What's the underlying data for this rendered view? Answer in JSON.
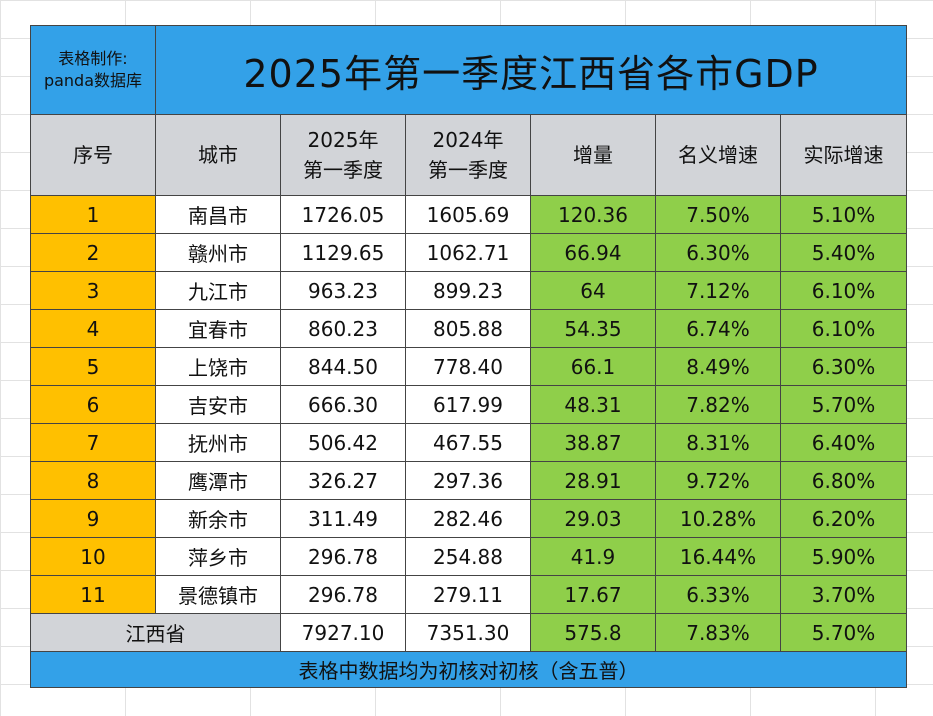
{
  "credit": {
    "line1": "表格制作:",
    "line2": "panda数据库"
  },
  "title": "2025年第一季度江西省各市GDP",
  "headers": {
    "index": "序号",
    "city": "城市",
    "q2025_line1": "2025年",
    "q2025_line2": "第一季度",
    "q2024_line1": "2024年",
    "q2024_line2": "第一季度",
    "increase": "增量",
    "nominal": "名义增速",
    "real": "实际增速"
  },
  "rows": [
    {
      "index": "1",
      "city": "南昌市",
      "q2025": "1726.05",
      "q2024": "1605.69",
      "increase": "120.36",
      "nominal": "7.50%",
      "real": "5.10%"
    },
    {
      "index": "2",
      "city": "赣州市",
      "q2025": "1129.65",
      "q2024": "1062.71",
      "increase": "66.94",
      "nominal": "6.30%",
      "real": "5.40%"
    },
    {
      "index": "3",
      "city": "九江市",
      "q2025": "963.23",
      "q2024": "899.23",
      "increase": "64",
      "nominal": "7.12%",
      "real": "6.10%"
    },
    {
      "index": "4",
      "city": "宜春市",
      "q2025": "860.23",
      "q2024": "805.88",
      "increase": "54.35",
      "nominal": "6.74%",
      "real": "6.10%"
    },
    {
      "index": "5",
      "city": "上饶市",
      "q2025": "844.50",
      "q2024": "778.40",
      "increase": "66.1",
      "nominal": "8.49%",
      "real": "6.30%"
    },
    {
      "index": "6",
      "city": "吉安市",
      "q2025": "666.30",
      "q2024": "617.99",
      "increase": "48.31",
      "nominal": "7.82%",
      "real": "5.70%"
    },
    {
      "index": "7",
      "city": "抚州市",
      "q2025": "506.42",
      "q2024": "467.55",
      "increase": "38.87",
      "nominal": "8.31%",
      "real": "6.40%"
    },
    {
      "index": "8",
      "city": "鹰潭市",
      "q2025": "326.27",
      "q2024": "297.36",
      "increase": "28.91",
      "nominal": "9.72%",
      "real": "6.80%"
    },
    {
      "index": "9",
      "city": "新余市",
      "q2025": "311.49",
      "q2024": "282.46",
      "increase": "29.03",
      "nominal": "10.28%",
      "real": "6.20%"
    },
    {
      "index": "10",
      "city": "萍乡市",
      "q2025": "296.78",
      "q2024": "254.88",
      "increase": "41.9",
      "nominal": "16.44%",
      "real": "5.90%"
    },
    {
      "index": "11",
      "city": "景德镇市",
      "q2025": "296.78",
      "q2024": "279.11",
      "increase": "17.67",
      "nominal": "6.33%",
      "real": "3.70%"
    }
  ],
  "total": {
    "label": "江西省",
    "q2025": "7927.10",
    "q2024": "7351.30",
    "increase": "575.8",
    "nominal": "7.83%",
    "real": "5.70%"
  },
  "footer": "表格中数据均为初核对初核（含五普）",
  "colors": {
    "title_bg": "#33a1e8",
    "header_bg": "#d2d4d8",
    "index_bg": "#ffc000",
    "growth_bg": "#8fcf4a"
  }
}
